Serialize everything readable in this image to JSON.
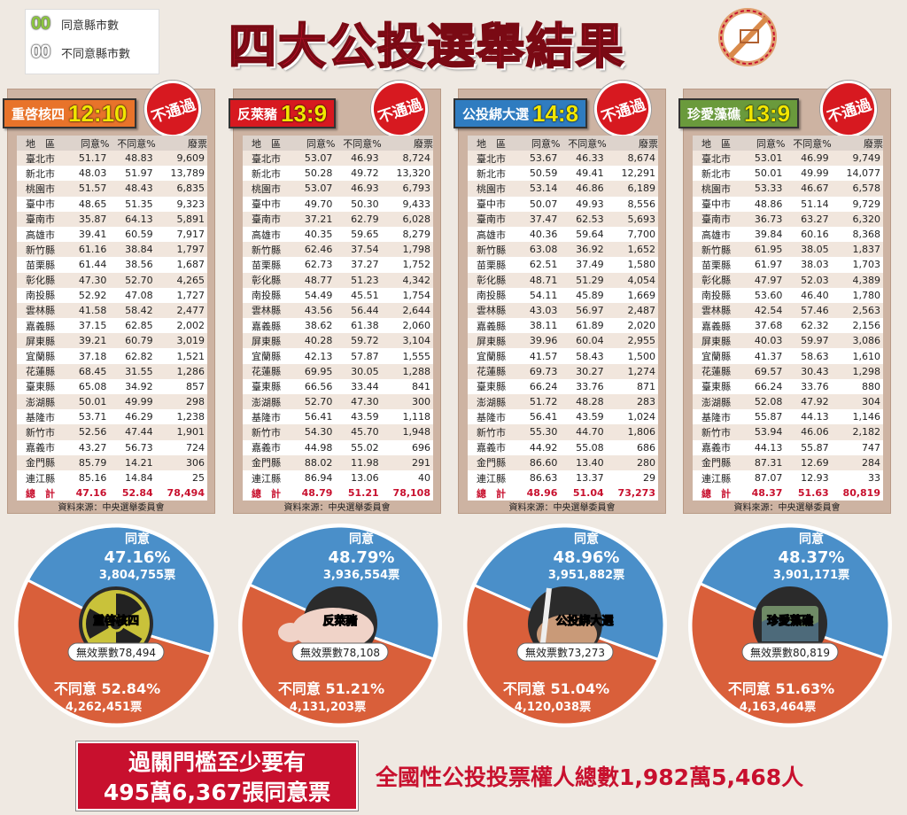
{
  "legend": {
    "sample": "00",
    "agree": "同意縣市數",
    "disagree": "不同意縣市數"
  },
  "title": "四大公投選舉結果",
  "headers": [
    "地　區",
    "同意%",
    "不同意%",
    "廢票"
  ],
  "badge_text": "不通過",
  "source": "資料來源：中央選舉委員會",
  "counties": [
    "臺北市",
    "新北市",
    "桃園市",
    "臺中市",
    "臺南市",
    "高雄市",
    "新竹縣",
    "苗栗縣",
    "彰化縣",
    "南投縣",
    "雲林縣",
    "嘉義縣",
    "屏東縣",
    "宜蘭縣",
    "花蓮縣",
    "臺東縣",
    "澎湖縣",
    "基隆市",
    "新竹市",
    "嘉義市",
    "金門縣",
    "連江縣"
  ],
  "total_label": "總　計",
  "colors": {
    "agree": "#4a8fc9",
    "disagree": "#d95f3a",
    "title": "#c8102e"
  },
  "chart_data": [
    {
      "type": "table",
      "name": "重啓核四",
      "score_agree": "12",
      "score_disagree": "10",
      "score_color": "#f2e600",
      "tab_bg": "#e8732a",
      "tab_fg": "#ffffff",
      "rows": [
        [
          "51.17",
          "48.83",
          "9,609"
        ],
        [
          "48.03",
          "51.97",
          "13,789"
        ],
        [
          "51.57",
          "48.43",
          "6,835"
        ],
        [
          "48.65",
          "51.35",
          "9,323"
        ],
        [
          "35.87",
          "64.13",
          "5,891"
        ],
        [
          "39.41",
          "60.59",
          "7,917"
        ],
        [
          "61.16",
          "38.84",
          "1,797"
        ],
        [
          "61.44",
          "38.56",
          "1,687"
        ],
        [
          "47.30",
          "52.70",
          "4,265"
        ],
        [
          "52.92",
          "47.08",
          "1,727"
        ],
        [
          "41.58",
          "58.42",
          "2,477"
        ],
        [
          "37.15",
          "62.85",
          "2,002"
        ],
        [
          "39.21",
          "60.79",
          "3,019"
        ],
        [
          "37.18",
          "62.82",
          "1,521"
        ],
        [
          "68.45",
          "31.55",
          "1,286"
        ],
        [
          "65.08",
          "34.92",
          "857"
        ],
        [
          "50.01",
          "49.99",
          "298"
        ],
        [
          "53.71",
          "46.29",
          "1,238"
        ],
        [
          "52.56",
          "47.44",
          "1,901"
        ],
        [
          "43.27",
          "56.73",
          "724"
        ],
        [
          "85.79",
          "14.21",
          "306"
        ],
        [
          "85.16",
          "14.84",
          "25"
        ]
      ],
      "total": [
        "47.16",
        "52.84",
        "78,494"
      ],
      "pie": {
        "type": "pie",
        "agree_label": "同意",
        "agree_pct": "47.16%",
        "agree_votes": "3,804,755票",
        "disagree_label": "不同意",
        "disagree_pct": "52.84%",
        "disagree_votes": "4,262,451票",
        "invalid": "無效票數78,494",
        "center_label": "重啓核四",
        "agree_value": 47.16,
        "disagree_value": 52.84,
        "image": "nuclear-radiation-symbol"
      }
    },
    {
      "type": "table",
      "name": "反萊豬",
      "score_agree": "13",
      "score_disagree": "9",
      "score_color": "#f2e600",
      "tab_bg": "#d71920",
      "tab_fg": "#ffffff",
      "rows": [
        [
          "53.07",
          "46.93",
          "8,724"
        ],
        [
          "50.28",
          "49.72",
          "13,320"
        ],
        [
          "53.07",
          "46.93",
          "6,793"
        ],
        [
          "49.70",
          "50.30",
          "9,433"
        ],
        [
          "37.21",
          "62.79",
          "6,028"
        ],
        [
          "40.35",
          "59.65",
          "8,279"
        ],
        [
          "62.46",
          "37.54",
          "1,798"
        ],
        [
          "62.73",
          "37.27",
          "1,752"
        ],
        [
          "48.77",
          "51.23",
          "4,342"
        ],
        [
          "54.49",
          "45.51",
          "1,754"
        ],
        [
          "43.56",
          "56.44",
          "2,644"
        ],
        [
          "38.62",
          "61.38",
          "2,060"
        ],
        [
          "40.28",
          "59.72",
          "3,104"
        ],
        [
          "42.13",
          "57.87",
          "1,555"
        ],
        [
          "69.95",
          "30.05",
          "1,288"
        ],
        [
          "66.56",
          "33.44",
          "841"
        ],
        [
          "52.70",
          "47.30",
          "300"
        ],
        [
          "56.41",
          "43.59",
          "1,118"
        ],
        [
          "54.30",
          "45.70",
          "1,948"
        ],
        [
          "44.98",
          "55.02",
          "696"
        ],
        [
          "88.02",
          "11.98",
          "291"
        ],
        [
          "86.94",
          "13.06",
          "40"
        ]
      ],
      "total": [
        "48.79",
        "51.21",
        "78,108"
      ],
      "pie": {
        "type": "pie",
        "agree_label": "同意",
        "agree_pct": "48.79%",
        "agree_votes": "3,936,554票",
        "disagree_label": "不同意",
        "disagree_pct": "51.21%",
        "disagree_votes": "4,131,203票",
        "invalid": "無效票數78,108",
        "center_label": "反萊豬",
        "agree_value": 48.79,
        "disagree_value": 51.21,
        "image": "pig"
      }
    },
    {
      "type": "table",
      "name": "公投綁大選",
      "score_agree": "14",
      "score_disagree": "8",
      "score_color": "#f2e600",
      "tab_bg": "#2f7cc0",
      "tab_fg": "#ffffff",
      "rows": [
        [
          "53.67",
          "46.33",
          "8,674"
        ],
        [
          "50.59",
          "49.41",
          "12,291"
        ],
        [
          "53.14",
          "46.86",
          "6,189"
        ],
        [
          "50.07",
          "49.93",
          "8,556"
        ],
        [
          "37.47",
          "62.53",
          "5,693"
        ],
        [
          "40.36",
          "59.64",
          "7,700"
        ],
        [
          "63.08",
          "36.92",
          "1,652"
        ],
        [
          "62.51",
          "37.49",
          "1,580"
        ],
        [
          "48.71",
          "51.29",
          "4,054"
        ],
        [
          "54.11",
          "45.89",
          "1,669"
        ],
        [
          "43.03",
          "56.97",
          "2,487"
        ],
        [
          "38.11",
          "61.89",
          "2,020"
        ],
        [
          "39.96",
          "60.04",
          "2,955"
        ],
        [
          "41.57",
          "58.43",
          "1,500"
        ],
        [
          "69.73",
          "30.27",
          "1,274"
        ],
        [
          "66.24",
          "33.76",
          "871"
        ],
        [
          "51.72",
          "48.28",
          "283"
        ],
        [
          "56.41",
          "43.59",
          "1,024"
        ],
        [
          "55.30",
          "44.70",
          "1,806"
        ],
        [
          "44.92",
          "55.08",
          "686"
        ],
        [
          "86.60",
          "13.40",
          "280"
        ],
        [
          "86.63",
          "13.37",
          "29"
        ]
      ],
      "total": [
        "48.96",
        "51.04",
        "73,273"
      ],
      "pie": {
        "type": "pie",
        "agree_label": "同意",
        "agree_pct": "48.96%",
        "agree_votes": "3,951,882票",
        "disagree_label": "不同意",
        "disagree_pct": "51.04%",
        "disagree_votes": "4,120,038票",
        "invalid": "無效票數73,273",
        "center_label": "公投綁大選",
        "agree_value": 48.96,
        "disagree_value": 51.04,
        "image": "hand-holding-pen"
      }
    },
    {
      "type": "table",
      "name": "珍愛藻礁",
      "score_agree": "13",
      "score_disagree": "9",
      "score_color": "#f2e600",
      "tab_bg": "#6a9a3c",
      "tab_fg": "#ffffff",
      "rows": [
        [
          "53.01",
          "46.99",
          "9,749"
        ],
        [
          "50.01",
          "49.99",
          "14,077"
        ],
        [
          "53.33",
          "46.67",
          "6,578"
        ],
        [
          "48.86",
          "51.14",
          "9,729"
        ],
        [
          "36.73",
          "63.27",
          "6,320"
        ],
        [
          "39.84",
          "60.16",
          "8,368"
        ],
        [
          "61.95",
          "38.05",
          "1,837"
        ],
        [
          "61.97",
          "38.03",
          "1,703"
        ],
        [
          "47.97",
          "52.03",
          "4,389"
        ],
        [
          "53.60",
          "46.40",
          "1,780"
        ],
        [
          "42.54",
          "57.46",
          "2,563"
        ],
        [
          "37.68",
          "62.32",
          "2,156"
        ],
        [
          "40.03",
          "59.97",
          "3,086"
        ],
        [
          "41.37",
          "58.63",
          "1,610"
        ],
        [
          "69.57",
          "30.43",
          "1,298"
        ],
        [
          "66.24",
          "33.76",
          "880"
        ],
        [
          "52.08",
          "47.92",
          "304"
        ],
        [
          "55.87",
          "44.13",
          "1,146"
        ],
        [
          "53.94",
          "46.06",
          "2,182"
        ],
        [
          "44.13",
          "55.87",
          "747"
        ],
        [
          "87.31",
          "12.69",
          "284"
        ],
        [
          "87.07",
          "12.93",
          "33"
        ]
      ],
      "total": [
        "48.37",
        "51.63",
        "80,819"
      ],
      "pie": {
        "type": "pie",
        "agree_label": "同意",
        "agree_pct": "48.37%",
        "agree_votes": "3,901,171票",
        "disagree_label": "不同意",
        "disagree_pct": "51.63%",
        "disagree_votes": "4,163,464票",
        "invalid": "無效票數80,819",
        "center_label": "珍愛藻礁",
        "agree_value": 48.37,
        "disagree_value": 51.63,
        "image": "algal-reef-coast"
      }
    }
  ],
  "threshold": {
    "line1": "過關門檻至少要有",
    "line2": "495萬6,367張同意票"
  },
  "electorate": "全國性公投投票權人總數1,982萬5,468人"
}
